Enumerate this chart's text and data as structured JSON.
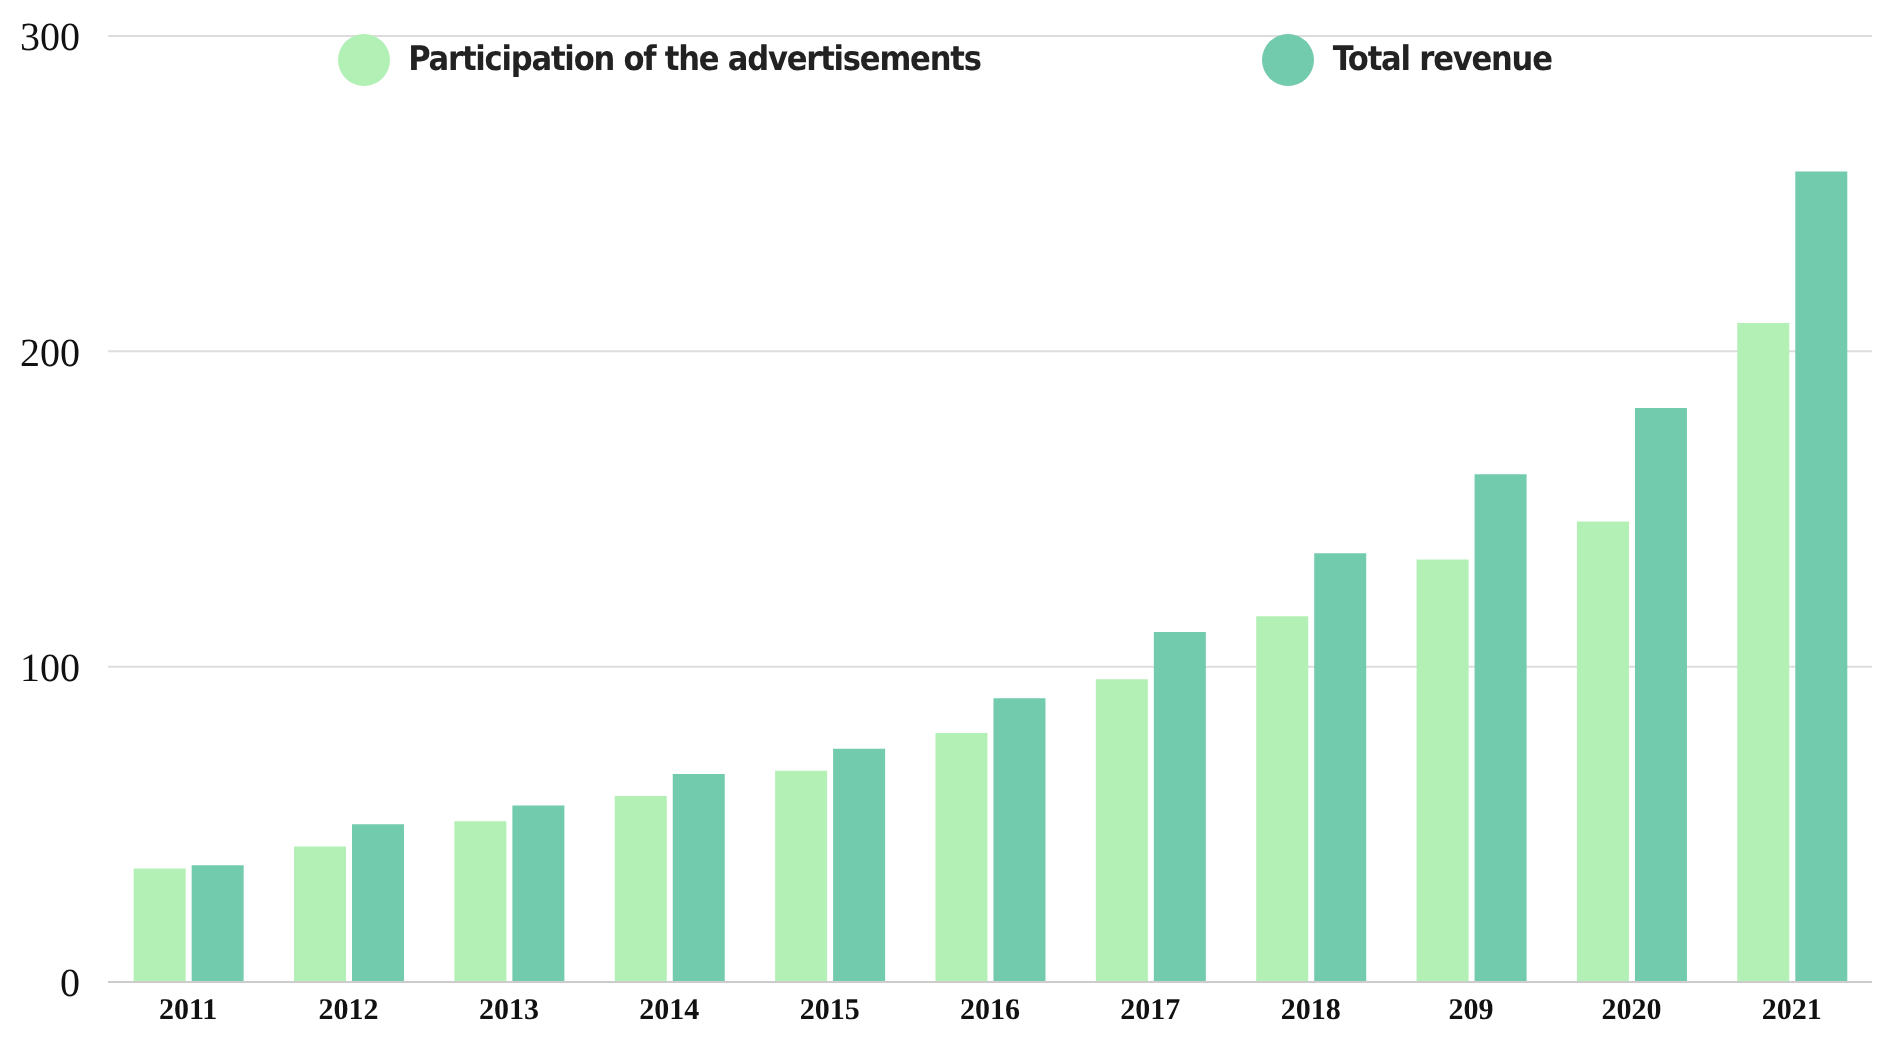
{
  "chart_data": {
    "type": "bar",
    "categories": [
      "2011",
      "2012",
      "2013",
      "2014",
      "2015",
      "2016",
      "2017",
      "2018",
      "209",
      "2020",
      "2021"
    ],
    "series": [
      {
        "name": "Participation of the advertisements",
        "color": "#b3f0b5",
        "values": [
          36,
          43,
          51,
          59,
          67,
          79,
          96,
          116,
          134,
          146,
          209
        ]
      },
      {
        "name": "Total revenue",
        "color": "#72cbad",
        "values": [
          37,
          50,
          56,
          66,
          74,
          90,
          111,
          136,
          161,
          182,
          257
        ]
      }
    ],
    "ylim": [
      0,
      300
    ],
    "yticks": [
      0,
      100,
      200,
      300
    ],
    "grid": "y",
    "legend": "top"
  }
}
